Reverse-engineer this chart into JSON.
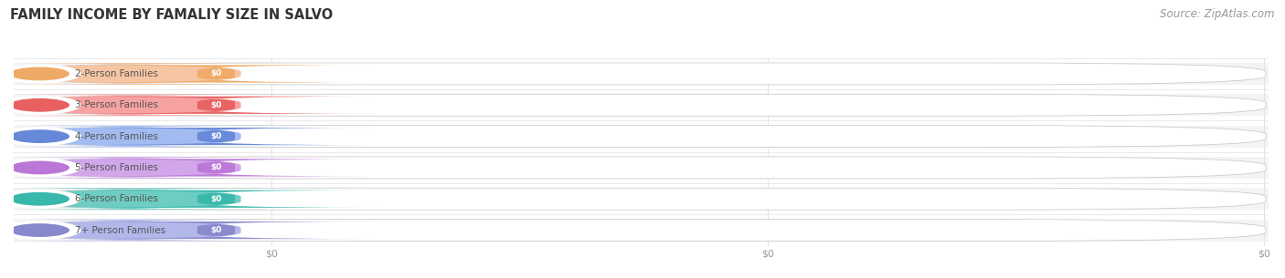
{
  "title": "FAMILY INCOME BY FAMALIY SIZE IN SALVO",
  "source": "Source: ZipAtlas.com",
  "categories": [
    "2-Person Families",
    "3-Person Families",
    "4-Person Families",
    "5-Person Families",
    "6-Person Families",
    "7+ Person Families"
  ],
  "values": [
    0,
    0,
    0,
    0,
    0,
    0
  ],
  "bar_colors": [
    "#f5c09a",
    "#f59898",
    "#98b4f0",
    "#cc9ee8",
    "#5ec8bc",
    "#aab0e8"
  ],
  "circle_colors": [
    "#eeaa66",
    "#e86060",
    "#6688d8",
    "#bb77d8",
    "#38b8aa",
    "#8888cc"
  ],
  "label_text_color": "#555555",
  "value_text_color": "#ffffff",
  "background_color": "#ffffff",
  "xtick_labels": [
    "$0",
    "$0",
    "$0"
  ],
  "title_fontsize": 10.5,
  "label_fontsize": 7.5,
  "source_fontsize": 8.5
}
